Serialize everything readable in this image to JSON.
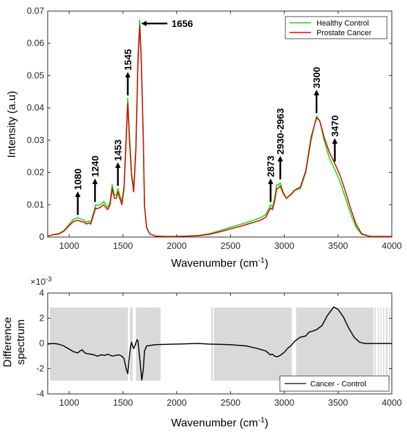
{
  "chart_data": [
    {
      "type": "line",
      "xlabel": "Wavenumber (cm",
      "xlabel_sup": "-1",
      "xlabel_end": ")",
      "ylabel": "Intensity (a.u)",
      "xlim": [
        800,
        4000
      ],
      "ylim": [
        0,
        0.07
      ],
      "x_ticks": [
        "1000",
        "1500",
        "2000",
        "2500",
        "3000",
        "3500",
        "4000"
      ],
      "y_ticks": [
        "0",
        "0.01",
        "0.02",
        "0.03",
        "0.04",
        "0.05",
        "0.06",
        "0.07"
      ],
      "legend_position": "top-right",
      "series": [
        {
          "name": "Healthy Control",
          "color": "#00e000",
          "points": [
            [
              800,
              0.0003
            ],
            [
              850,
              0.0008
            ],
            [
              900,
              0.001
            ],
            [
              950,
              0.002
            ],
            [
              1000,
              0.004
            ],
            [
              1040,
              0.0055
            ],
            [
              1080,
              0.006
            ],
            [
              1110,
              0.0055
            ],
            [
              1140,
              0.0052
            ],
            [
              1160,
              0.0046
            ],
            [
              1180,
              0.005
            ],
            [
              1200,
              0.0046
            ],
            [
              1230,
              0.008
            ],
            [
              1245,
              0.01
            ],
            [
              1260,
              0.0098
            ],
            [
              1290,
              0.01
            ],
            [
              1320,
              0.011
            ],
            [
              1340,
              0.01
            ],
            [
              1360,
              0.0092
            ],
            [
              1380,
              0.011
            ],
            [
              1400,
              0.0162
            ],
            [
              1420,
              0.013
            ],
            [
              1440,
              0.013
            ],
            [
              1453,
              0.015
            ],
            [
              1470,
              0.013
            ],
            [
              1490,
              0.011
            ],
            [
              1510,
              0.016
            ],
            [
              1530,
              0.032
            ],
            [
              1545,
              0.043
            ],
            [
              1560,
              0.032
            ],
            [
              1580,
              0.02
            ],
            [
              1600,
              0.015
            ],
            [
              1620,
              0.028
            ],
            [
              1640,
              0.056
            ],
            [
              1656,
              0.0672
            ],
            [
              1670,
              0.056
            ],
            [
              1690,
              0.03
            ],
            [
              1700,
              0.01
            ],
            [
              1720,
              0.003
            ],
            [
              1750,
              0.001
            ],
            [
              1800,
              0.0003
            ],
            [
              1900,
              0.0002
            ],
            [
              2000,
              0.0002
            ],
            [
              2100,
              0.0003
            ],
            [
              2200,
              0.0005
            ],
            [
              2300,
              0.001
            ],
            [
              2400,
              0.002
            ],
            [
              2500,
              0.003
            ],
            [
              2600,
              0.004
            ],
            [
              2700,
              0.005
            ],
            [
              2780,
              0.006
            ],
            [
              2830,
              0.007
            ],
            [
              2860,
              0.009
            ],
            [
              2873,
              0.01
            ],
            [
              2890,
              0.0092
            ],
            [
              2910,
              0.012
            ],
            [
              2930,
              0.0162
            ],
            [
              2945,
              0.016
            ],
            [
              2963,
              0.0168
            ],
            [
              2990,
              0.014
            ],
            [
              3020,
              0.012
            ],
            [
              3060,
              0.013
            ],
            [
              3100,
              0.0145
            ],
            [
              3150,
              0.015
            ],
            [
              3200,
              0.02
            ],
            [
              3250,
              0.03
            ],
            [
              3300,
              0.0375
            ],
            [
              3330,
              0.036
            ],
            [
              3370,
              0.03
            ],
            [
              3420,
              0.0245
            ],
            [
              3470,
              0.021
            ],
            [
              3520,
              0.017
            ],
            [
              3570,
              0.012
            ],
            [
              3620,
              0.007
            ],
            [
              3670,
              0.003
            ],
            [
              3720,
              0.0008
            ],
            [
              3800,
              0.0002
            ],
            [
              3900,
              0.0002
            ],
            [
              4000,
              0.0002
            ]
          ]
        },
        {
          "name": "Prostate Cancer",
          "color": "#e00000",
          "points": [
            [
              800,
              0.0003
            ],
            [
              850,
              0.0007
            ],
            [
              900,
              0.0009
            ],
            [
              950,
              0.0018
            ],
            [
              1000,
              0.0035
            ],
            [
              1040,
              0.0048
            ],
            [
              1080,
              0.0052
            ],
            [
              1110,
              0.0048
            ],
            [
              1140,
              0.0046
            ],
            [
              1160,
              0.004
            ],
            [
              1180,
              0.0044
            ],
            [
              1200,
              0.004
            ],
            [
              1230,
              0.0072
            ],
            [
              1245,
              0.009
            ],
            [
              1260,
              0.0088
            ],
            [
              1290,
              0.0092
            ],
            [
              1320,
              0.01
            ],
            [
              1340,
              0.0092
            ],
            [
              1360,
              0.0085
            ],
            [
              1380,
              0.01
            ],
            [
              1400,
              0.015
            ],
            [
              1420,
              0.012
            ],
            [
              1440,
              0.012
            ],
            [
              1453,
              0.014
            ],
            [
              1470,
              0.012
            ],
            [
              1490,
              0.01
            ],
            [
              1510,
              0.015
            ],
            [
              1530,
              0.03
            ],
            [
              1545,
              0.0415
            ],
            [
              1560,
              0.03
            ],
            [
              1580,
              0.019
            ],
            [
              1600,
              0.014
            ],
            [
              1620,
              0.0265
            ],
            [
              1640,
              0.054
            ],
            [
              1656,
              0.0655
            ],
            [
              1670,
              0.055
            ],
            [
              1690,
              0.029
            ],
            [
              1700,
              0.0095
            ],
            [
              1720,
              0.0028
            ],
            [
              1750,
              0.001
            ],
            [
              1800,
              0.0003
            ],
            [
              1900,
              0.0002
            ],
            [
              2000,
              0.0002
            ],
            [
              2100,
              0.0003
            ],
            [
              2200,
              0.0004
            ],
            [
              2300,
              0.0008
            ],
            [
              2400,
              0.0016
            ],
            [
              2500,
              0.0025
            ],
            [
              2600,
              0.0034
            ],
            [
              2700,
              0.0044
            ],
            [
              2780,
              0.0052
            ],
            [
              2830,
              0.0062
            ],
            [
              2860,
              0.0082
            ],
            [
              2873,
              0.009
            ],
            [
              2890,
              0.0085
            ],
            [
              2910,
              0.011
            ],
            [
              2930,
              0.015
            ],
            [
              2945,
              0.0152
            ],
            [
              2963,
              0.0158
            ],
            [
              2990,
              0.0135
            ],
            [
              3020,
              0.012
            ],
            [
              3060,
              0.0132
            ],
            [
              3100,
              0.0146
            ],
            [
              3150,
              0.0155
            ],
            [
              3200,
              0.0205
            ],
            [
              3250,
              0.031
            ],
            [
              3300,
              0.037
            ],
            [
              3330,
              0.036
            ],
            [
              3370,
              0.031
            ],
            [
              3420,
              0.0262
            ],
            [
              3470,
              0.0228
            ],
            [
              3520,
              0.019
            ],
            [
              3570,
              0.014
            ],
            [
              3620,
              0.0085
            ],
            [
              3670,
              0.0038
            ],
            [
              3720,
              0.001
            ],
            [
              3800,
              0.0002
            ],
            [
              3900,
              0.0002
            ],
            [
              4000,
              0.0002
            ]
          ]
        }
      ],
      "annotations": [
        {
          "label": "1080",
          "x": 1080,
          "y": 0.006,
          "arrow": "up"
        },
        {
          "label": "1240",
          "x": 1240,
          "y": 0.01,
          "arrow": "up"
        },
        {
          "label": "1453",
          "x": 1453,
          "y": 0.015,
          "arrow": "up"
        },
        {
          "label": "1545",
          "x": 1545,
          "y": 0.043,
          "arrow": "up"
        },
        {
          "label": "1656",
          "x": 1656,
          "y": 0.067,
          "arrow": "left"
        },
        {
          "label": "2873",
          "x": 2873,
          "y": 0.01,
          "arrow": "up"
        },
        {
          "label": "2930-2963",
          "x": 2963,
          "y": 0.017,
          "arrow": "up"
        },
        {
          "label": "3300",
          "x": 3300,
          "y": 0.0375,
          "arrow": "up"
        },
        {
          "label": "3470",
          "x": 3470,
          "y": 0.0225,
          "arrow": "up"
        }
      ]
    },
    {
      "type": "line",
      "xlabel": "Wavenumber (cm",
      "xlabel_sup": "-1",
      "xlabel_end": ")",
      "ylabel_line1": "Difference",
      "ylabel_line2": "spectrum",
      "xlim": [
        800,
        4000
      ],
      "ylim": [
        -4,
        4
      ],
      "y_scale_label": "×10",
      "y_scale_exp": "-3",
      "x_ticks": [
        "1000",
        "1500",
        "2000",
        "2500",
        "3000",
        "3500",
        "4000"
      ],
      "y_ticks": [
        "-4",
        "-2",
        "0",
        "2",
        "4"
      ],
      "legend_position": "bottom-right",
      "shaded_regions": [
        [
          820,
          1545
        ],
        [
          1565,
          1590
        ],
        [
          1620,
          1850
        ],
        [
          2320,
          2335
        ],
        [
          2345,
          3070
        ],
        [
          3110,
          3830
        ],
        [
          3840,
          3850
        ],
        [
          3870,
          3880
        ],
        [
          3895,
          3905
        ],
        [
          3920,
          3930
        ],
        [
          3945,
          3960
        ],
        [
          3975,
          3985
        ]
      ],
      "series": [
        {
          "name": "Cancer - Control",
          "color": "#000000",
          "points": [
            [
              800,
              -0.05
            ],
            [
              850,
              0.0
            ],
            [
              900,
              -0.05
            ],
            [
              950,
              -0.2
            ],
            [
              1000,
              -0.45
            ],
            [
              1040,
              -0.65
            ],
            [
              1080,
              -0.75
            ],
            [
              1100,
              -0.6
            ],
            [
              1120,
              -0.5
            ],
            [
              1140,
              -0.7
            ],
            [
              1160,
              -0.8
            ],
            [
              1200,
              -0.85
            ],
            [
              1230,
              -0.9
            ],
            [
              1260,
              -1.0
            ],
            [
              1300,
              -0.9
            ],
            [
              1330,
              -0.95
            ],
            [
              1360,
              -0.85
            ],
            [
              1400,
              -1.0
            ],
            [
              1430,
              -0.95
            ],
            [
              1460,
              -0.9
            ],
            [
              1490,
              -1.0
            ],
            [
              1510,
              -1.2
            ],
            [
              1530,
              -2.0
            ],
            [
              1545,
              -2.4
            ],
            [
              1555,
              -1.4
            ],
            [
              1570,
              -0.3
            ],
            [
              1580,
              0.1
            ],
            [
              1590,
              -0.2
            ],
            [
              1600,
              -0.4
            ],
            [
              1615,
              -0.1
            ],
            [
              1630,
              0.3
            ],
            [
              1640,
              0.2
            ],
            [
              1660,
              -1.5
            ],
            [
              1675,
              -2.9
            ],
            [
              1690,
              -2.0
            ],
            [
              1700,
              -0.6
            ],
            [
              1720,
              -0.2
            ],
            [
              1800,
              -0.1
            ],
            [
              2000,
              -0.05
            ],
            [
              2200,
              0.0
            ],
            [
              2300,
              -0.05
            ],
            [
              2500,
              -0.1
            ],
            [
              2650,
              -0.2
            ],
            [
              2750,
              -0.4
            ],
            [
              2830,
              -0.6
            ],
            [
              2870,
              -0.9
            ],
            [
              2890,
              -0.85
            ],
            [
              2910,
              -1.0
            ],
            [
              2930,
              -1.05
            ],
            [
              2950,
              -1.0
            ],
            [
              2970,
              -0.9
            ],
            [
              3000,
              -0.7
            ],
            [
              3030,
              -0.4
            ],
            [
              3060,
              -0.2
            ],
            [
              3100,
              0.2
            ],
            [
              3150,
              0.5
            ],
            [
              3200,
              0.6
            ],
            [
              3230,
              0.9
            ],
            [
              3270,
              1.0
            ],
            [
              3300,
              1.1
            ],
            [
              3350,
              1.4
            ],
            [
              3400,
              2.2
            ],
            [
              3460,
              2.9
            ],
            [
              3500,
              2.7
            ],
            [
              3550,
              2.1
            ],
            [
              3600,
              1.2
            ],
            [
              3650,
              0.5
            ],
            [
              3700,
              0.1
            ],
            [
              3750,
              0.0
            ],
            [
              3800,
              0.0
            ],
            [
              4000,
              0.0
            ]
          ]
        }
      ]
    }
  ]
}
